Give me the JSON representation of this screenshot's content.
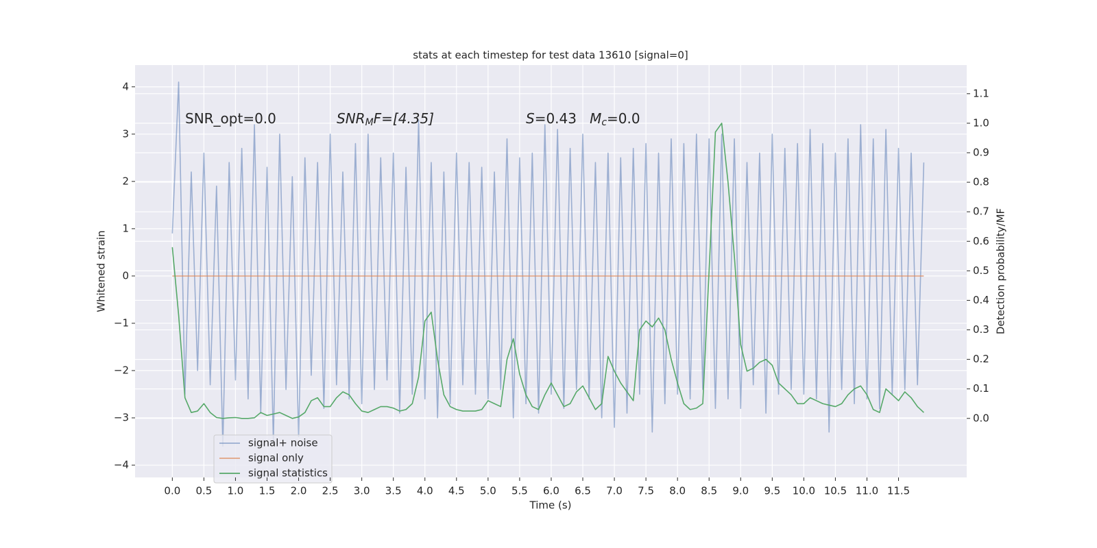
{
  "chart_data": {
    "type": "line",
    "title": "stats at each timestep for test data 13610 [signal=0]",
    "xlabel": "Time (s)",
    "ylabel": "Whitened strain",
    "y2label": "Detection probability/MF",
    "annotations": [
      {
        "parts": [
          "SNR_opt=0.0"
        ]
      },
      {
        "parts": [
          "SNR",
          "M",
          "F=[4.35]"
        ]
      },
      {
        "parts": [
          "S",
          "=0.43   ",
          "M",
          "c",
          "=0.0"
        ]
      }
    ],
    "grid": true,
    "legend_loc": "lower left",
    "xlim": [
      -0.59,
      12.58
    ],
    "ylim": [
      -4.26,
      4.46
    ],
    "y2lim": [
      -0.2,
      1.197
    ],
    "xticks": [
      {
        "value": 0,
        "label": "0.0"
      },
      0.5,
      {
        "value": 1,
        "label": "1.0"
      },
      1.5,
      {
        "value": 2,
        "label": "2.0"
      },
      2.5,
      {
        "value": 3,
        "label": "3.0"
      },
      3.5,
      {
        "value": 4,
        "label": "4.0"
      },
      4.5,
      {
        "value": 5,
        "label": "5.0"
      },
      5.5,
      {
        "value": 6,
        "label": "6.0"
      },
      6.5,
      {
        "value": 7,
        "label": "7.0"
      },
      7.5,
      {
        "value": 8,
        "label": "8.0"
      },
      8.5,
      {
        "value": 9,
        "label": "9.0"
      },
      9.5,
      {
        "value": 10,
        "label": "10.0"
      },
      10.5,
      {
        "value": 11,
        "label": "11.0"
      },
      11.5
    ],
    "yticks": [
      {
        "value": -4,
        "label": "−4"
      },
      {
        "value": -3,
        "label": "−3"
      },
      {
        "value": -2,
        "label": "−2"
      },
      {
        "value": -1,
        "label": "−1"
      },
      0,
      1,
      2,
      3,
      4
    ],
    "y2ticks": [
      {
        "value": 0,
        "label": "0.0"
      },
      0.1,
      0.2,
      0.3,
      0.4,
      0.5,
      0.6,
      0.7,
      0.8,
      0.9,
      {
        "value": 1,
        "label": "1.0"
      },
      1.1
    ],
    "x": [
      0,
      0.1,
      0.2,
      0.3,
      0.4,
      0.5,
      0.6,
      0.7,
      0.8,
      0.9,
      1,
      1.1,
      1.2,
      1.3,
      1.4,
      1.5,
      1.6,
      1.7,
      1.8,
      1.9,
      2,
      2.1,
      2.2,
      2.3,
      2.4,
      2.5,
      2.6,
      2.7,
      2.8,
      2.9,
      3,
      3.1,
      3.2,
      3.3,
      3.4,
      3.5,
      3.6,
      3.7,
      3.8,
      3.9,
      4,
      4.1,
      4.2,
      4.3,
      4.4,
      4.5,
      4.6,
      4.7,
      4.8,
      4.9,
      5,
      5.1,
      5.2,
      5.3,
      5.4,
      5.5,
      5.6,
      5.7,
      5.8,
      5.9,
      6,
      6.1,
      6.2,
      6.3,
      6.4,
      6.5,
      6.6,
      6.7,
      6.8,
      6.9,
      7,
      7.1,
      7.2,
      7.3,
      7.4,
      7.5,
      7.6,
      7.7,
      7.8,
      7.9,
      8,
      8.1,
      8.2,
      8.3,
      8.4,
      8.5,
      8.6,
      8.7,
      8.8,
      8.9,
      9,
      9.1,
      9.2,
      9.3,
      9.4,
      9.5,
      9.6,
      9.7,
      9.8,
      9.9,
      10,
      10.1,
      10.2,
      10.3,
      10.4,
      10.5,
      10.6,
      10.7,
      10.8,
      10.9,
      11,
      11.1,
      11.2,
      11.3,
      11.4,
      11.5,
      11.6,
      11.7,
      11.8,
      11.9
    ],
    "series": [
      {
        "name": "signal+ noise",
        "color": "#4c72b0",
        "opacity": 0.5,
        "axis": "y",
        "values": [
          0.9,
          4.1,
          -2.5,
          2.2,
          -2.0,
          2.6,
          -2.3,
          1.9,
          -3.6,
          2.4,
          -2.2,
          2.7,
          -2.6,
          3.2,
          -2.9,
          2.3,
          -3.5,
          3.0,
          -2.4,
          2.1,
          -3.4,
          2.5,
          -2.1,
          2.4,
          -2.8,
          3.0,
          -2.3,
          2.2,
          -2.6,
          2.8,
          -2.7,
          3.0,
          -2.4,
          2.5,
          -2.2,
          2.6,
          -2.9,
          2.3,
          -2.5,
          3.3,
          -2.6,
          2.4,
          -3.0,
          2.2,
          -2.7,
          2.6,
          -2.3,
          2.4,
          -2.5,
          2.3,
          -2.6,
          2.2,
          -2.4,
          2.9,
          -3.0,
          2.5,
          -2.7,
          2.6,
          -2.9,
          3.2,
          -2.5,
          3.1,
          -2.8,
          2.7,
          -2.4,
          3.0,
          -2.6,
          2.4,
          -3.0,
          2.6,
          -3.2,
          2.5,
          -2.9,
          2.7,
          -2.5,
          2.8,
          -3.3,
          2.6,
          -2.7,
          2.9,
          -2.5,
          2.8,
          -2.6,
          3.0,
          -2.4,
          2.9,
          -2.8,
          3.0,
          -2.6,
          2.9,
          -2.8,
          2.4,
          -2.3,
          2.6,
          -2.9,
          3.0,
          -2.5,
          2.7,
          -2.4,
          2.8,
          -2.5,
          3.1,
          -2.6,
          2.8,
          -3.3,
          2.6,
          -2.4,
          2.9,
          -2.7,
          3.2,
          -2.6,
          2.9,
          -2.8,
          3.1,
          -2.5,
          2.7,
          -2.4,
          2.6,
          -2.3,
          2.4
        ]
      },
      {
        "name": "signal only",
        "color": "#dd8452",
        "opacity": 0.7,
        "axis": "y",
        "values": [
          0,
          0,
          0,
          0,
          0,
          0,
          0,
          0,
          0,
          0,
          0,
          0,
          0,
          0,
          0,
          0,
          0,
          0,
          0,
          0,
          0,
          0,
          0,
          0,
          0,
          0,
          0,
          0,
          0,
          0,
          0,
          0,
          0,
          0,
          0,
          0,
          0,
          0,
          0,
          0,
          0,
          0,
          0,
          0,
          0,
          0,
          0,
          0,
          0,
          0,
          0,
          0,
          0,
          0,
          0,
          0,
          0,
          0,
          0,
          0,
          0,
          0,
          0,
          0,
          0,
          0,
          0,
          0,
          0,
          0,
          0,
          0,
          0,
          0,
          0,
          0,
          0,
          0,
          0,
          0,
          0,
          0,
          0,
          0,
          0,
          0,
          0,
          0,
          0,
          0,
          0,
          0,
          0,
          0,
          0,
          0,
          0,
          0,
          0,
          0,
          0,
          0,
          0,
          0,
          0,
          0,
          0,
          0,
          0,
          0,
          0,
          0,
          0,
          0,
          0,
          0,
          0,
          0,
          0,
          0
        ]
      },
      {
        "name": "signal statistics",
        "color": "#55a868",
        "opacity": 1,
        "axis": "y2",
        "values": [
          0.58,
          0.35,
          0.07,
          0.02,
          0.025,
          0.05,
          0.02,
          0.003,
          0,
          0.002,
          0.003,
          0,
          0,
          0.002,
          0.02,
          0.01,
          0.015,
          0.02,
          0.01,
          0,
          0.005,
          0.02,
          0.06,
          0.07,
          0.04,
          0.04,
          0.07,
          0.09,
          0.08,
          0.05,
          0.025,
          0.02,
          0.03,
          0.04,
          0.04,
          0.035,
          0.025,
          0.03,
          0.05,
          0.14,
          0.33,
          0.36,
          0.2,
          0.08,
          0.04,
          0.03,
          0.025,
          0.025,
          0.025,
          0.03,
          0.06,
          0.05,
          0.04,
          0.2,
          0.27,
          0.15,
          0.08,
          0.04,
          0.03,
          0.08,
          0.12,
          0.08,
          0.04,
          0.05,
          0.09,
          0.11,
          0.07,
          0.03,
          0.05,
          0.21,
          0.16,
          0.12,
          0.09,
          0.06,
          0.3,
          0.33,
          0.31,
          0.34,
          0.3,
          0.2,
          0.12,
          0.05,
          0.03,
          0.035,
          0.05,
          0.5,
          0.97,
          1.0,
          0.8,
          0.55,
          0.25,
          0.16,
          0.17,
          0.19,
          0.2,
          0.18,
          0.12,
          0.1,
          0.08,
          0.05,
          0.05,
          0.07,
          0.06,
          0.05,
          0.045,
          0.04,
          0.05,
          0.08,
          0.1,
          0.11,
          0.08,
          0.03,
          0.02,
          0.1,
          0.08,
          0.06,
          0.09,
          0.07,
          0.04,
          0.02
        ]
      }
    ]
  }
}
